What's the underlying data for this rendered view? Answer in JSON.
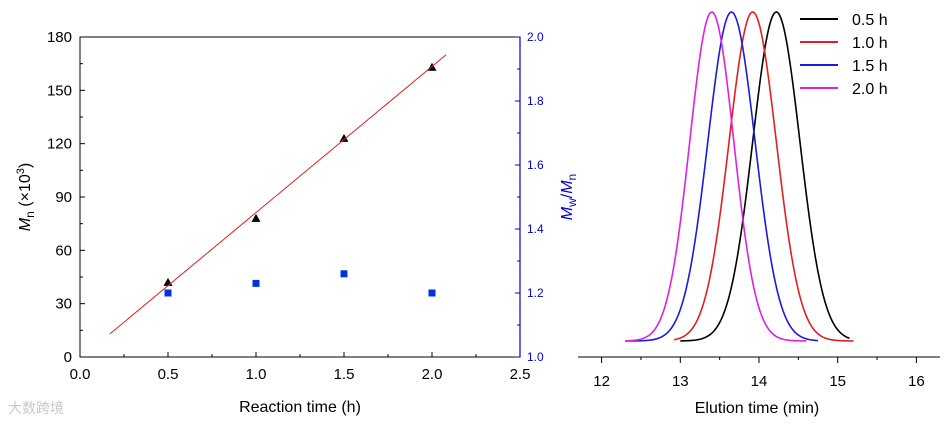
{
  "watermark": "大数跨境",
  "colors": {
    "axis": "#000000",
    "right_axis": "#0000cc",
    "fit_line": "#e02020",
    "mn_marker": "#000000",
    "pdi_marker": "#0033dd"
  },
  "chart_data": [
    {
      "type": "scatter",
      "xlabel": "Reaction time (h)",
      "ylabel": "Mn (×10³)",
      "y2label": "Mw/Mn",
      "xlim": [
        0.0,
        2.5
      ],
      "ylim": [
        0,
        180
      ],
      "y2lim": [
        1.0,
        2.0
      ],
      "x_ticks": [
        "0.0",
        "0.5",
        "1.0",
        "1.5",
        "2.0",
        "2.5"
      ],
      "y_ticks": [
        "0",
        "30",
        "60",
        "90",
        "120",
        "150",
        "180"
      ],
      "y2_ticks": [
        "1.0",
        "1.2",
        "1.4",
        "1.6",
        "1.8",
        "2.0"
      ],
      "series": [
        {
          "name": "Mn",
          "axis": "left",
          "marker": "triangle",
          "x": [
            0.5,
            1.0,
            1.5,
            2.0
          ],
          "y": [
            42,
            78,
            123,
            163
          ]
        },
        {
          "name": "Mw/Mn",
          "axis": "right",
          "marker": "square",
          "x": [
            0.5,
            1.0,
            1.5,
            2.0
          ],
          "y": [
            1.2,
            1.23,
            1.26,
            1.2
          ]
        },
        {
          "name": "linear fit",
          "axis": "left",
          "marker": "line",
          "x": [
            0.17,
            2.08
          ],
          "y": [
            13,
            170
          ]
        }
      ]
    },
    {
      "type": "line",
      "xlabel": "Elution time (min)",
      "xlim": [
        11.7,
        16.3
      ],
      "x_ticks": [
        "12",
        "13",
        "14",
        "15",
        "16"
      ],
      "legend_position": "top-right",
      "series": [
        {
          "name": "0.5 h",
          "color": "#000000",
          "peak": 14.22,
          "sigma": 0.3,
          "start": 13.0,
          "end": 15.15
        },
        {
          "name": "1.0 h",
          "color": "#e02020",
          "peak": 13.92,
          "sigma": 0.3,
          "start": 12.92,
          "end": 15.2
        },
        {
          "name": "1.5 h",
          "color": "#1a1ae0",
          "peak": 13.65,
          "sigma": 0.3,
          "start": 12.3,
          "end": 14.75
        },
        {
          "name": "2.0 h",
          "color": "#e020e0",
          "peak": 13.4,
          "sigma": 0.28,
          "start": 12.3,
          "end": 14.6
        }
      ]
    }
  ]
}
